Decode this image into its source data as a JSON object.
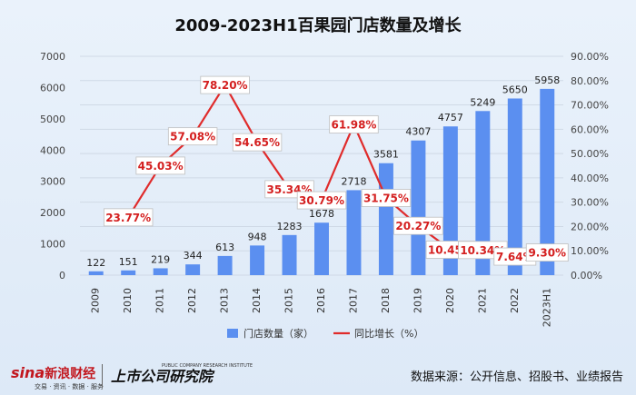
{
  "chart_data": {
    "type": "bar+line",
    "title": "2009-2023H1百果园门店数量及增长",
    "categories": [
      "2009",
      "2010",
      "2011",
      "2012",
      "2013",
      "2014",
      "2015",
      "2016",
      "2017",
      "2018",
      "2019",
      "2020",
      "2021",
      "2022",
      "2023H1"
    ],
    "series": [
      {
        "name": "门店数量（家）",
        "type": "bar",
        "axis": "left",
        "values": [
          122,
          151,
          219,
          344,
          613,
          948,
          1283,
          1678,
          2718,
          3581,
          4307,
          4757,
          5249,
          5650,
          5958
        ],
        "labels": [
          "122",
          "151",
          "219",
          "344",
          "613",
          "948",
          "1283",
          "1678",
          "2718",
          "3581",
          "4307",
          "4757",
          "5249",
          "5650",
          "5958"
        ],
        "color": "#5b8ff0"
      },
      {
        "name": "同比增长（%）",
        "type": "line",
        "axis": "right",
        "values": [
          null,
          23.77,
          45.03,
          57.08,
          78.2,
          54.65,
          35.34,
          30.79,
          61.98,
          31.75,
          20.27,
          10.45,
          10.34,
          7.64,
          9.3
        ],
        "labels": [
          "",
          "23.77%",
          "45.03%",
          "57.08%",
          "78.20%",
          "54.65%",
          "35.34%",
          "30.79%",
          "61.98%",
          "31.75%",
          "20.27%",
          "10.45%",
          "10.34%",
          "7.64%",
          "9.30%"
        ],
        "color": "#e02b2b"
      }
    ],
    "ylim_left": [
      0,
      7000
    ],
    "yticks_left": [
      "0",
      "1000",
      "2000",
      "3000",
      "4000",
      "5000",
      "6000",
      "7000"
    ],
    "ylim_right": [
      0,
      90
    ],
    "yticks_right": [
      "0.00%",
      "10.00%",
      "20.00%",
      "30.00%",
      "40.00%",
      "50.00%",
      "60.00%",
      "70.00%",
      "80.00%",
      "90.00%"
    ],
    "grid": true,
    "legend_position": "bottom"
  },
  "footer": {
    "source": "数据来源：公开信息、招股书、业绩报告",
    "logo_sina": "sina",
    "logo_sina_cn": "新浪财经",
    "logo_sina_sub": "交易 · 资讯 · 数据 · 服务",
    "logo_research": "上市公司研究院",
    "logo_research_en": "PUBLIC COMPANY RESEARCH INSTITUTE"
  }
}
